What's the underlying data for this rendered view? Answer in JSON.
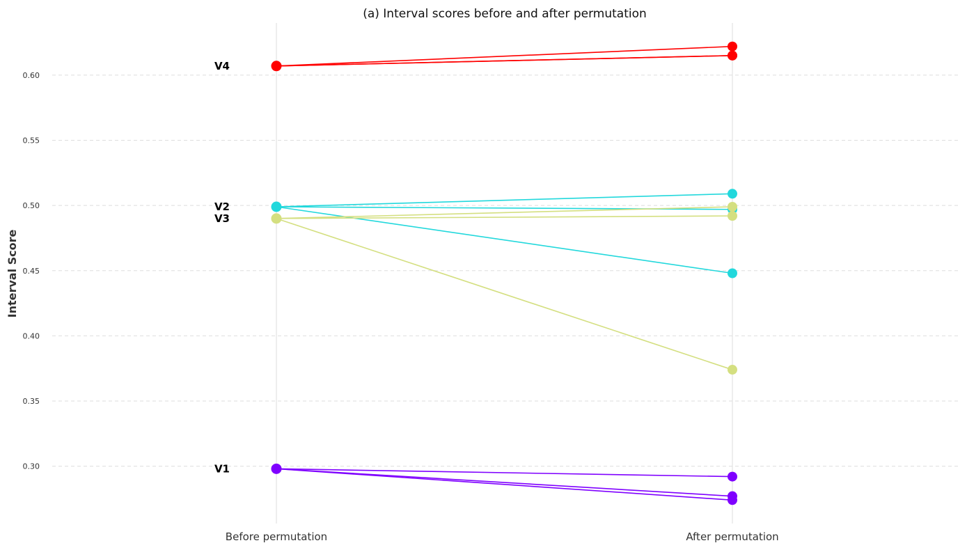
{
  "chart_data": {
    "type": "line",
    "title": "(a) Interval scores before and after permutation",
    "xlabel": "",
    "ylabel": "Interval Score",
    "categories": [
      "Before permutation",
      "After permutation"
    ],
    "ylim": [
      0.256,
      0.64
    ],
    "yticks": [
      0.3,
      0.35,
      0.4,
      0.45,
      0.5,
      0.55,
      0.6
    ],
    "ytick_labels": [
      "0.30",
      "0.35",
      "0.40",
      "0.45",
      "0.50",
      "0.55",
      "0.60"
    ],
    "grid": "horizontal-dashed",
    "groups": [
      {
        "name": "V4",
        "color": "#ff0000",
        "before": 0.607,
        "after": [
          0.622,
          0.615,
          0.615
        ]
      },
      {
        "name": "V2",
        "color": "#22d8dc",
        "before": 0.499,
        "after": [
          0.509,
          0.497,
          0.448
        ]
      },
      {
        "name": "V3",
        "color": "#d4df80",
        "before": 0.49,
        "after": [
          0.499,
          0.492,
          0.374
        ]
      },
      {
        "name": "V1",
        "color": "#7f00ff",
        "before": 0.298,
        "after": [
          0.292,
          0.277,
          0.274
        ]
      }
    ]
  }
}
